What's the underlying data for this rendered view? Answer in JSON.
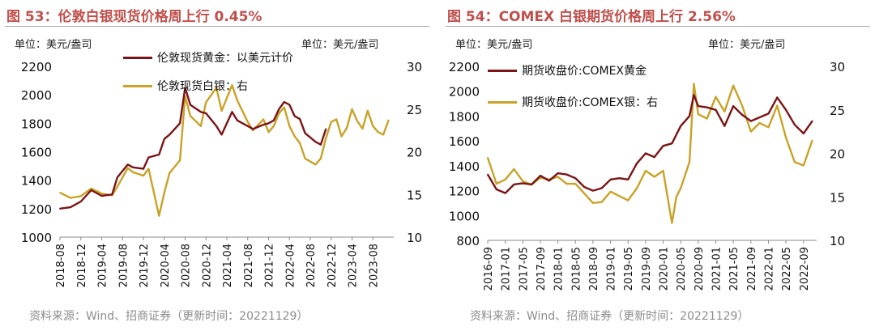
{
  "charts": [
    {
      "title": "图 53：伦敦白银现货价格周上行 0.45%",
      "left_unit": "单位：美元/盎司",
      "right_unit": "单位：美元/盎司",
      "source": "资料来源：Wind、招商证券（更新时间：20221129）",
      "legend": [
        "伦敦现货黄金：以美元计价",
        "伦敦现货白银：右"
      ]
    },
    {
      "title": "图 54：COMEX 白银期货价格周上行 2.56%",
      "left_unit": "单位：美元/盎司",
      "right_unit": "单位：美元/盎司",
      "source": "资料来源：Wind、招商证券（更新时间：20221129）",
      "legend": [
        "期货收盘价:COMEX黄金",
        "期货收盘价:COMEX银：右"
      ]
    }
  ],
  "colors": {
    "gold_series": "#7b1416",
    "silver_series": "#c9a227",
    "title": "#c0504d"
  },
  "chart_data": [
    {
      "type": "line",
      "title": "图 53：伦敦白银现货价格周上行 0.45%",
      "y_left": {
        "label": "单位：美元/盎司",
        "ylim": [
          1000,
          2200
        ],
        "ticks": [
          1000,
          1200,
          1400,
          1600,
          1800,
          2000,
          2200
        ]
      },
      "y_right": {
        "label": "单位：美元/盎司",
        "ylim": [
          10,
          30
        ],
        "ticks": [
          10,
          15,
          20,
          25,
          30
        ]
      },
      "x_ticks": [
        "2018-08",
        "2018-12",
        "2019-04",
        "2019-08",
        "2019-12",
        "2020-04",
        "2020-08",
        "2020-12",
        "2021-04",
        "2021-08",
        "2021-12",
        "2022-04",
        "2022-08",
        "2022-12",
        "2023-04",
        "2023-08"
      ],
      "x_range": [
        "2018-08",
        "2023-12"
      ],
      "legend_position": "top-center",
      "series": [
        {
          "name": "伦敦现货黄金：以美元计价",
          "axis": "left",
          "x": [
            "2018-08",
            "2018-10",
            "2018-12",
            "2019-02",
            "2019-04",
            "2019-06",
            "2019-07",
            "2019-09",
            "2019-10",
            "2019-12",
            "2020-01",
            "2020-03",
            "2020-04",
            "2020-05",
            "2020-07",
            "2020-08",
            "2020-09",
            "2020-11",
            "2020-12",
            "2021-02",
            "2021-03",
            "2021-05",
            "2021-06",
            "2021-08",
            "2021-09",
            "2021-11",
            "2021-12",
            "2022-01",
            "2022-02",
            "2022-03",
            "2022-04",
            "2022-05",
            "2022-06",
            "2022-07",
            "2022-09",
            "2022-10",
            "2022-11"
          ],
          "values": [
            1200,
            1210,
            1250,
            1330,
            1290,
            1300,
            1420,
            1510,
            1490,
            1480,
            1560,
            1580,
            1690,
            1720,
            1800,
            2050,
            1930,
            1880,
            1870,
            1780,
            1720,
            1880,
            1820,
            1780,
            1760,
            1790,
            1800,
            1820,
            1900,
            1950,
            1930,
            1850,
            1830,
            1730,
            1670,
            1650,
            1760
          ]
        },
        {
          "name": "伦敦现货白银：右",
          "axis": "right",
          "x": [
            "2018-08",
            "2018-10",
            "2018-12",
            "2019-02",
            "2019-04",
            "2019-06",
            "2019-07",
            "2019-09",
            "2019-10",
            "2019-12",
            "2020-01",
            "2020-03",
            "2020-04",
            "2020-05",
            "2020-07",
            "2020-08",
            "2020-09",
            "2020-11",
            "2020-12",
            "2021-02",
            "2021-03",
            "2021-05",
            "2021-06",
            "2021-08",
            "2021-09",
            "2021-11",
            "2021-12",
            "2022-01",
            "2022-02",
            "2022-03",
            "2022-04",
            "2022-05",
            "2022-06",
            "2022-07",
            "2022-09",
            "2022-10",
            "2022-11",
            "2022-12",
            "2023-01",
            "2023-02",
            "2023-03",
            "2023-04",
            "2023-05",
            "2023-06",
            "2023-07",
            "2023-08",
            "2023-09",
            "2023-10",
            "2023-11"
          ],
          "values": [
            15.2,
            14.6,
            14.8,
            15.7,
            15.1,
            14.9,
            15.9,
            18.1,
            17.6,
            17.2,
            18.0,
            12.5,
            15.2,
            17.5,
            19.0,
            26.5,
            24.2,
            23.0,
            25.8,
            27.5,
            24.8,
            27.8,
            26.0,
            23.5,
            22.5,
            23.8,
            22.3,
            23.0,
            24.5,
            25.2,
            23.0,
            21.8,
            21.0,
            19.2,
            18.5,
            19.2,
            21.6,
            23.5,
            23.8,
            21.8,
            22.8,
            25.0,
            23.6,
            22.7,
            24.8,
            23.0,
            22.3,
            22.0,
            23.7
          ]
        }
      ]
    },
    {
      "type": "line",
      "title": "图 54：COMEX 白银期货价格周上行 2.56%",
      "y_left": {
        "label": "单位：美元/盎司",
        "ylim": [
          800,
          2200
        ],
        "ticks": [
          800,
          1000,
          1200,
          1400,
          1600,
          1800,
          2000,
          2200
        ]
      },
      "y_right": {
        "label": "单位：美元/盎司",
        "ylim": [
          10,
          30
        ],
        "ticks": [
          10,
          15,
          20,
          25,
          30
        ]
      },
      "x_ticks": [
        "2016-09",
        "2017-01",
        "2017-05",
        "2017-09",
        "2018-01",
        "2018-05",
        "2018-09",
        "2019-01",
        "2019-05",
        "2019-09",
        "2020-01",
        "2020-05",
        "2020-09",
        "2021-01",
        "2021-05",
        "2021-09",
        "2022-01",
        "2022-05",
        "2022-09"
      ],
      "x_range": [
        "2016-09",
        "2022-12"
      ],
      "legend_position": "top-left",
      "series": [
        {
          "name": "期货收盘价:COMEX黄金",
          "axis": "left",
          "x": [
            "2016-09",
            "2016-11",
            "2017-01",
            "2017-03",
            "2017-05",
            "2017-07",
            "2017-09",
            "2017-11",
            "2018-01",
            "2018-03",
            "2018-05",
            "2018-07",
            "2018-09",
            "2018-11",
            "2019-01",
            "2019-03",
            "2019-05",
            "2019-07",
            "2019-09",
            "2019-11",
            "2020-01",
            "2020-03",
            "2020-05",
            "2020-07",
            "2020-08",
            "2020-09",
            "2020-11",
            "2021-01",
            "2021-03",
            "2021-05",
            "2021-07",
            "2021-09",
            "2021-11",
            "2022-01",
            "2022-03",
            "2022-05",
            "2022-07",
            "2022-09",
            "2022-11"
          ],
          "values": [
            1330,
            1210,
            1180,
            1250,
            1260,
            1250,
            1320,
            1280,
            1340,
            1330,
            1300,
            1230,
            1200,
            1220,
            1290,
            1300,
            1290,
            1420,
            1500,
            1470,
            1560,
            1580,
            1720,
            1800,
            1970,
            1880,
            1870,
            1850,
            1720,
            1880,
            1810,
            1760,
            1790,
            1820,
            1950,
            1850,
            1730,
            1660,
            1760
          ]
        },
        {
          "name": "期货收盘价:COMEX银：右",
          "axis": "right",
          "x": [
            "2016-09",
            "2016-11",
            "2017-01",
            "2017-03",
            "2017-05",
            "2017-07",
            "2017-09",
            "2017-11",
            "2018-01",
            "2018-03",
            "2018-05",
            "2018-07",
            "2018-09",
            "2018-11",
            "2019-01",
            "2019-03",
            "2019-05",
            "2019-07",
            "2019-09",
            "2019-11",
            "2020-01",
            "2020-03",
            "2020-04",
            "2020-05",
            "2020-07",
            "2020-08",
            "2020-09",
            "2020-11",
            "2021-01",
            "2021-03",
            "2021-05",
            "2021-07",
            "2021-09",
            "2021-11",
            "2022-01",
            "2022-03",
            "2022-05",
            "2022-07",
            "2022-09",
            "2022-11"
          ],
          "values": [
            19.5,
            16.5,
            17.0,
            18.2,
            16.8,
            16.4,
            17.2,
            17.0,
            17.3,
            16.5,
            16.5,
            15.4,
            14.3,
            14.4,
            15.6,
            15.1,
            14.6,
            16.0,
            18.0,
            17.3,
            18.0,
            12.0,
            15.0,
            16.0,
            19.0,
            28.0,
            24.5,
            24.0,
            26.5,
            24.8,
            27.8,
            25.5,
            22.5,
            23.5,
            23.0,
            25.5,
            21.8,
            19.0,
            18.6,
            21.5
          ]
        }
      ]
    }
  ]
}
